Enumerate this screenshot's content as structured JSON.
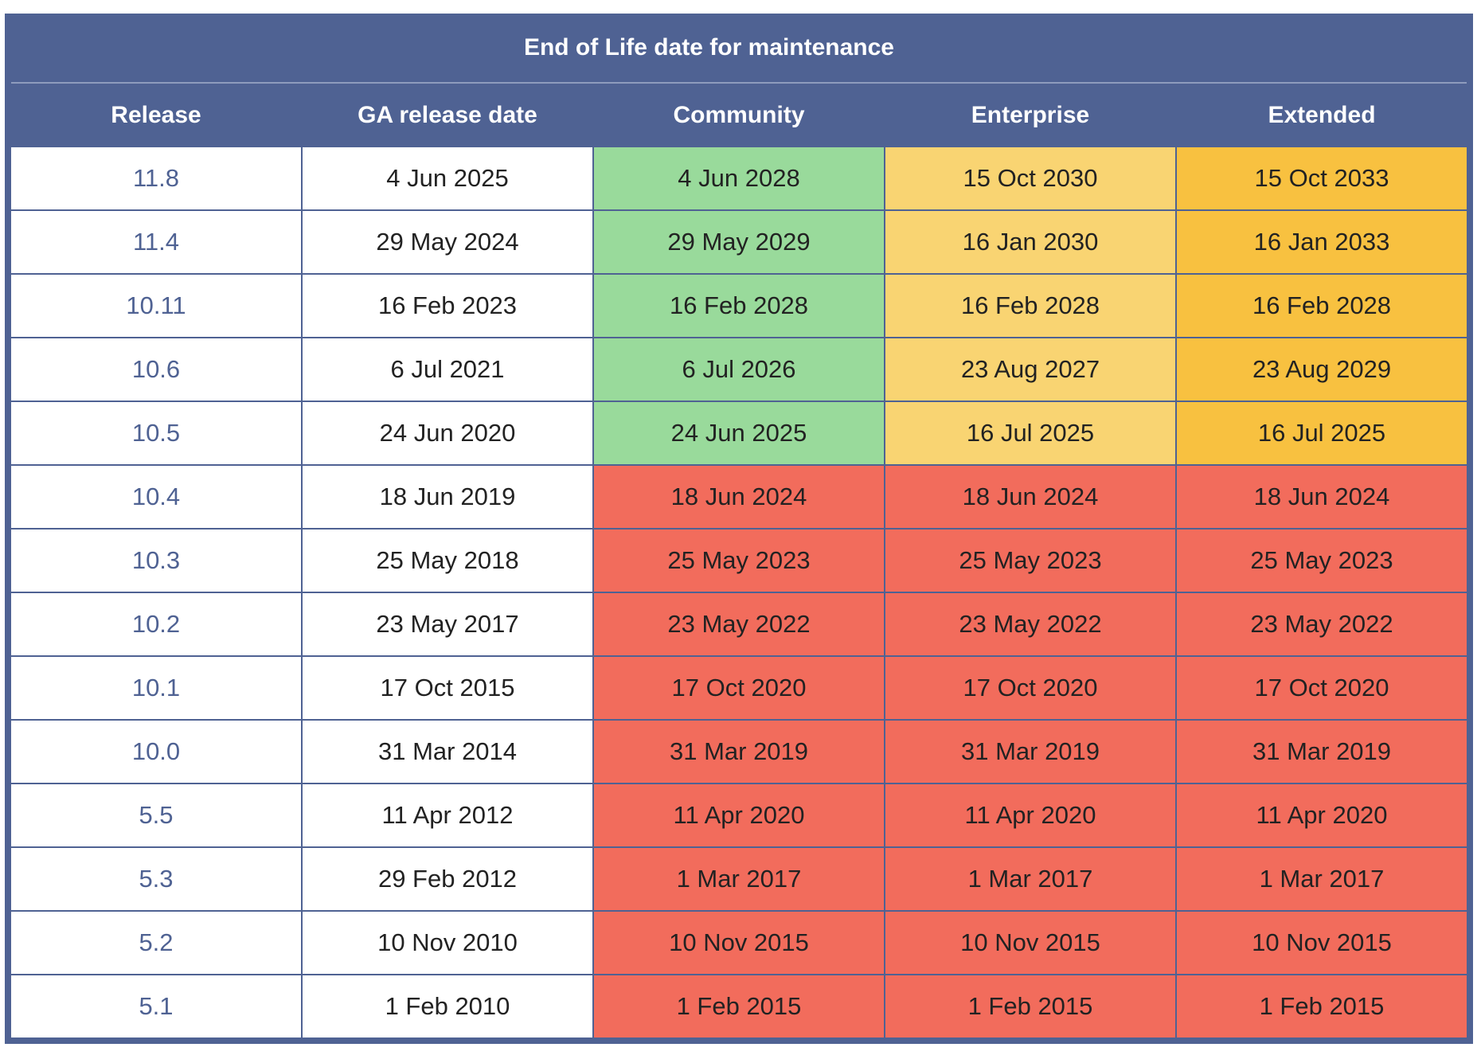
{
  "table": {
    "group_title": "End of Life date for maintenance",
    "headers": [
      "Release",
      "GA release date",
      "Community",
      "Enterprise",
      "Extended"
    ],
    "status_colors": {
      "green": "#99da9b",
      "yellow": "#f9d472",
      "orange": "#f8c140",
      "red": "#f26c5c",
      "header": "#4f6293"
    },
    "rows": [
      {
        "release": "11.8",
        "ga": "4 Jun 2025",
        "community": "4 Jun 2028",
        "enterprise": "15 Oct 2030",
        "extended": "15 Oct 2033",
        "s": [
          "green",
          "yellow",
          "orange"
        ]
      },
      {
        "release": "11.4",
        "ga": "29 May 2024",
        "community": "29 May 2029",
        "enterprise": "16 Jan 2030",
        "extended": "16 Jan 2033",
        "s": [
          "green",
          "yellow",
          "orange"
        ]
      },
      {
        "release": "10.11",
        "ga": "16 Feb 2023",
        "community": "16 Feb 2028",
        "enterprise": "16 Feb 2028",
        "extended": "16 Feb 2028",
        "s": [
          "green",
          "yellow",
          "orange"
        ]
      },
      {
        "release": "10.6",
        "ga": "6 Jul 2021",
        "community": "6 Jul 2026",
        "enterprise": "23 Aug 2027",
        "extended": "23 Aug 2029",
        "s": [
          "green",
          "yellow",
          "orange"
        ]
      },
      {
        "release": "10.5",
        "ga": "24 Jun 2020",
        "community": "24 Jun 2025",
        "enterprise": "16 Jul 2025",
        "extended": "16 Jul 2025",
        "s": [
          "green",
          "yellow",
          "orange"
        ]
      },
      {
        "release": "10.4",
        "ga": "18 Jun 2019",
        "community": "18 Jun 2024",
        "enterprise": "18 Jun 2024",
        "extended": "18 Jun 2024",
        "s": [
          "red",
          "red",
          "red"
        ]
      },
      {
        "release": "10.3",
        "ga": "25 May 2018",
        "community": "25 May 2023",
        "enterprise": "25 May 2023",
        "extended": "25 May 2023",
        "s": [
          "red",
          "red",
          "red"
        ]
      },
      {
        "release": "10.2",
        "ga": "23 May 2017",
        "community": "23 May 2022",
        "enterprise": "23 May 2022",
        "extended": "23 May 2022",
        "s": [
          "red",
          "red",
          "red"
        ]
      },
      {
        "release": "10.1",
        "ga": "17 Oct 2015",
        "community": "17 Oct 2020",
        "enterprise": "17 Oct 2020",
        "extended": "17 Oct 2020",
        "s": [
          "red",
          "red",
          "red"
        ]
      },
      {
        "release": "10.0",
        "ga": "31 Mar 2014",
        "community": "31 Mar 2019",
        "enterprise": "31 Mar 2019",
        "extended": "31 Mar 2019",
        "s": [
          "red",
          "red",
          "red"
        ]
      },
      {
        "release": "5.5",
        "ga": "11 Apr 2012",
        "community": "11 Apr 2020",
        "enterprise": "11 Apr 2020",
        "extended": "11 Apr 2020",
        "s": [
          "red",
          "red",
          "red"
        ]
      },
      {
        "release": "5.3",
        "ga": "29 Feb 2012",
        "community": "1 Mar 2017",
        "enterprise": "1 Mar 2017",
        "extended": "1 Mar 2017",
        "s": [
          "red",
          "red",
          "red"
        ]
      },
      {
        "release": "5.2",
        "ga": "10 Nov 2010",
        "community": "10 Nov 2015",
        "enterprise": "10 Nov 2015",
        "extended": "10 Nov 2015",
        "s": [
          "red",
          "red",
          "red"
        ]
      },
      {
        "release": "5.1",
        "ga": "1 Feb 2010",
        "community": "1 Feb 2015",
        "enterprise": "1 Feb 2015",
        "extended": "1 Feb 2015",
        "s": [
          "red",
          "red",
          "red"
        ]
      }
    ]
  }
}
